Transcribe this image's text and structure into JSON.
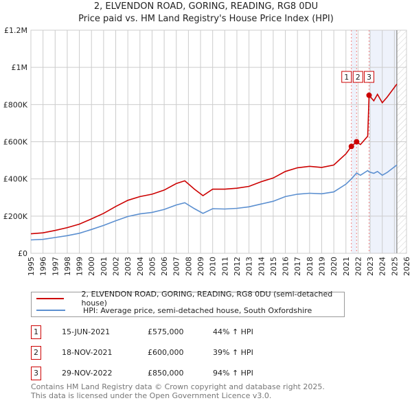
{
  "title": "2, ELVENDON ROAD, GORING, READING, RG8 0DU",
  "subtitle": "Price paid vs. HM Land Registry's House Price Index (HPI)",
  "chart_data": {
    "type": "line",
    "title": "2, ELVENDON ROAD, GORING, READING, RG8 0DU",
    "subtitle": "Price paid vs. HM Land Registry's House Price Index (HPI)",
    "xlim": [
      1995,
      2026
    ],
    "ylim": [
      0,
      1200000
    ],
    "y_ticks": [
      {
        "v": 0,
        "label": "£0"
      },
      {
        "v": 200000,
        "label": "£200K"
      },
      {
        "v": 400000,
        "label": "£400K"
      },
      {
        "v": 600000,
        "label": "£600K"
      },
      {
        "v": 800000,
        "label": "£800K"
      },
      {
        "v": 1000000,
        "label": "£1M"
      },
      {
        "v": 1200000,
        "label": "£1.2M"
      }
    ],
    "x_ticks": [
      "1995",
      "1996",
      "1997",
      "1998",
      "1999",
      "2000",
      "2001",
      "2002",
      "2003",
      "2004",
      "2005",
      "2006",
      "2007",
      "2008",
      "2009",
      "2010",
      "2011",
      "2012",
      "2013",
      "2014",
      "2015",
      "2016",
      "2017",
      "2018",
      "2019",
      "2020",
      "2021",
      "2022",
      "2023",
      "2024",
      "2025",
      "2026"
    ],
    "grid": true,
    "series": [
      {
        "name": "2, ELVENDON ROAD, GORING, READING, RG8 0DU (semi-detached house)",
        "color": "#cc0000",
        "x": [
          1995,
          1996,
          1997,
          1998,
          1999,
          2000,
          2001,
          2002,
          2003,
          2004,
          2005,
          2006,
          2007,
          2007.7,
          2008.5,
          2009.2,
          2010,
          2011,
          2012,
          2013,
          2014,
          2015,
          2016,
          2017,
          2018,
          2019,
          2020,
          2021,
          2021.45,
          2021.88,
          2022.2,
          2022.8,
          2022.91,
          2023.3,
          2023.6,
          2024,
          2024.4,
          2025.2
        ],
        "y": [
          105000,
          110000,
          123000,
          138000,
          157000,
          185000,
          215000,
          252000,
          285000,
          305000,
          318000,
          340000,
          375000,
          390000,
          345000,
          310000,
          345000,
          345000,
          350000,
          360000,
          385000,
          405000,
          440000,
          460000,
          468000,
          462000,
          475000,
          535000,
          575000,
          600000,
          585000,
          630000,
          850000,
          820000,
          855000,
          810000,
          840000,
          910000
        ]
      },
      {
        "name": "HPI: Average price, semi-detached house, South Oxfordshire",
        "color": "#5b8fd0",
        "x": [
          1995,
          1996,
          1997,
          1998,
          1999,
          2000,
          2001,
          2002,
          2003,
          2004,
          2005,
          2006,
          2007,
          2007.7,
          2008.5,
          2009.2,
          2010,
          2011,
          2012,
          2013,
          2014,
          2015,
          2016,
          2017,
          2018,
          2019,
          2020,
          2021,
          2021.45,
          2021.88,
          2022.2,
          2022.8,
          2022.91,
          2023.3,
          2023.6,
          2024,
          2024.4,
          2025.2
        ],
        "y": [
          72000,
          75000,
          85000,
          95000,
          108000,
          128000,
          150000,
          175000,
          198000,
          212000,
          220000,
          236000,
          260000,
          272000,
          240000,
          215000,
          240000,
          238000,
          242000,
          250000,
          265000,
          280000,
          305000,
          318000,
          323000,
          320000,
          330000,
          372000,
          400000,
          432000,
          420000,
          445000,
          438000,
          430000,
          440000,
          420000,
          435000,
          475000
        ]
      }
    ],
    "sales": [
      {
        "n": "1",
        "x": 2021.45,
        "y": 575000,
        "date": "15-JUN-2021",
        "price": "£575,000",
        "hpi": "44% ↑ HPI"
      },
      {
        "n": "2",
        "x": 2021.88,
        "y": 600000,
        "date": "18-NOV-2021",
        "price": "£600,000",
        "hpi": "39% ↑ HPI"
      },
      {
        "n": "3",
        "x": 2022.91,
        "y": 850000,
        "date": "29-NOV-2022",
        "price": "£850,000",
        "hpi": "94% ↑ HPI"
      }
    ],
    "forecast_start": 2025.2
  },
  "legend": {
    "red": "2, ELVENDON ROAD, GORING, READING, RG8 0DU (semi-detached house)",
    "blue": "HPI: Average price, semi-detached house, South Oxfordshire"
  },
  "footer": {
    "line1": "Contains HM Land Registry data © Crown copyright and database right 2025.",
    "line2": "This data is licensed under the Open Government Licence v3.0."
  }
}
